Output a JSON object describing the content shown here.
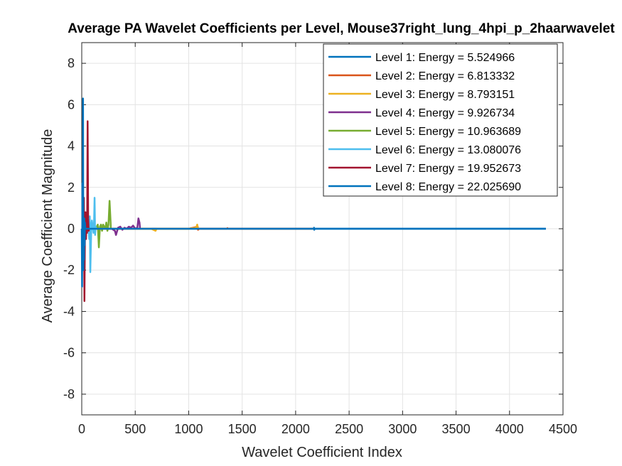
{
  "chart_data": {
    "type": "line",
    "title": "Average PA Wavelet Coefficients per Level, Mouse37right_lung_4hpi_p_2haarwavelet",
    "xlabel": "Wavelet Coefficient Index",
    "ylabel": "Average Coefficient Magnitude",
    "xlim": [
      0,
      4500
    ],
    "ylim": [
      -9,
      9
    ],
    "xticks": [
      "0",
      "500",
      "1000",
      "1500",
      "2000",
      "2500",
      "3000",
      "3500",
      "4000",
      "4500"
    ],
    "yticks": [
      "8",
      "6",
      "4",
      "2",
      "0",
      "-2",
      "-4",
      "-6",
      "-8"
    ],
    "grid": true,
    "legend_position": "top-right",
    "series": [
      {
        "name": "Level 1: Energy = 5.524966",
        "color": "#0072BD",
        "x": [
          0,
          1100,
          2170,
          2172,
          2174,
          2180,
          3000,
          4340
        ],
        "y": [
          0,
          0,
          0,
          0.05,
          -0.05,
          0,
          0,
          0
        ]
      },
      {
        "name": "Level 2: Energy = 6.813332",
        "color": "#D95319",
        "x": [
          0,
          600,
          1000,
          1085,
          1087,
          1100,
          1360,
          1362,
          1370,
          2170
        ],
        "y": [
          0,
          0,
          0,
          0.1,
          -0.05,
          0,
          0,
          0.03,
          0,
          0
        ]
      },
      {
        "name": "Level 3: Energy = 8.793151",
        "color": "#EDB120",
        "x": [
          0,
          400,
          650,
          670,
          690,
          700,
          800,
          1000,
          1070,
          1080,
          1085
        ],
        "y": [
          0,
          0,
          0,
          -0.05,
          -0.1,
          0,
          0,
          0,
          0.05,
          0.2,
          0
        ]
      },
      {
        "name": "Level 4: Energy = 9.926734",
        "color": "#7E2F8E",
        "x": [
          0,
          280,
          310,
          320,
          340,
          360,
          380,
          400,
          420,
          440,
          460,
          480,
          500,
          520,
          530,
          540,
          545
        ],
        "y": [
          0,
          0,
          -0.1,
          -0.3,
          0.05,
          0.1,
          -0.05,
          0.05,
          0,
          0.1,
          0.05,
          0.15,
          0,
          0.05,
          0.5,
          0.3,
          0
        ]
      },
      {
        "name": "Level 5: Energy = 10.963689",
        "color": "#77AC30",
        "x": [
          0,
          130,
          150,
          160,
          170,
          180,
          190,
          200,
          210,
          220,
          230,
          240,
          250,
          260,
          270,
          272
        ],
        "y": [
          0,
          0,
          0.2,
          -0.9,
          0.1,
          0.2,
          -0.1,
          0.2,
          0.1,
          0,
          0.3,
          -0.1,
          0.2,
          1.35,
          0.3,
          0
        ]
      },
      {
        "name": "Level 6: Energy = 13.080076",
        "color": "#4DBEEE",
        "x": [
          0,
          40,
          60,
          70,
          75,
          80,
          90,
          95,
          100,
          110,
          115,
          120,
          125,
          130,
          136
        ],
        "y": [
          0,
          0,
          0.3,
          -0.5,
          0.6,
          -2.1,
          0.2,
          0.4,
          0.2,
          -0.2,
          0.3,
          1.5,
          -0.3,
          0.1,
          0
        ]
      },
      {
        "name": "Level 7: Energy = 19.952673",
        "color": "#A2142F",
        "x": [
          0,
          10,
          20,
          25,
          30,
          35,
          40,
          45,
          50,
          55,
          60,
          65,
          68
        ],
        "y": [
          0,
          -0.5,
          1.5,
          -3.5,
          -0.2,
          0.8,
          -0.5,
          0.3,
          -0.2,
          5.2,
          0.5,
          -0.1,
          0
        ]
      },
      {
        "name": "Level 8: Energy = 22.025690",
        "color": "#0072BD",
        "x": [
          0,
          3,
          6,
          9,
          12,
          15,
          18,
          21,
          24,
          27,
          30,
          34,
          500,
          1000,
          2000,
          3000,
          4000,
          4340
        ],
        "y": [
          0,
          -2.8,
          2.2,
          -1.0,
          6.3,
          -2.0,
          0.2,
          -1.5,
          0.5,
          -0.8,
          0.3,
          0,
          0,
          0,
          0,
          0,
          0,
          0
        ]
      }
    ]
  }
}
